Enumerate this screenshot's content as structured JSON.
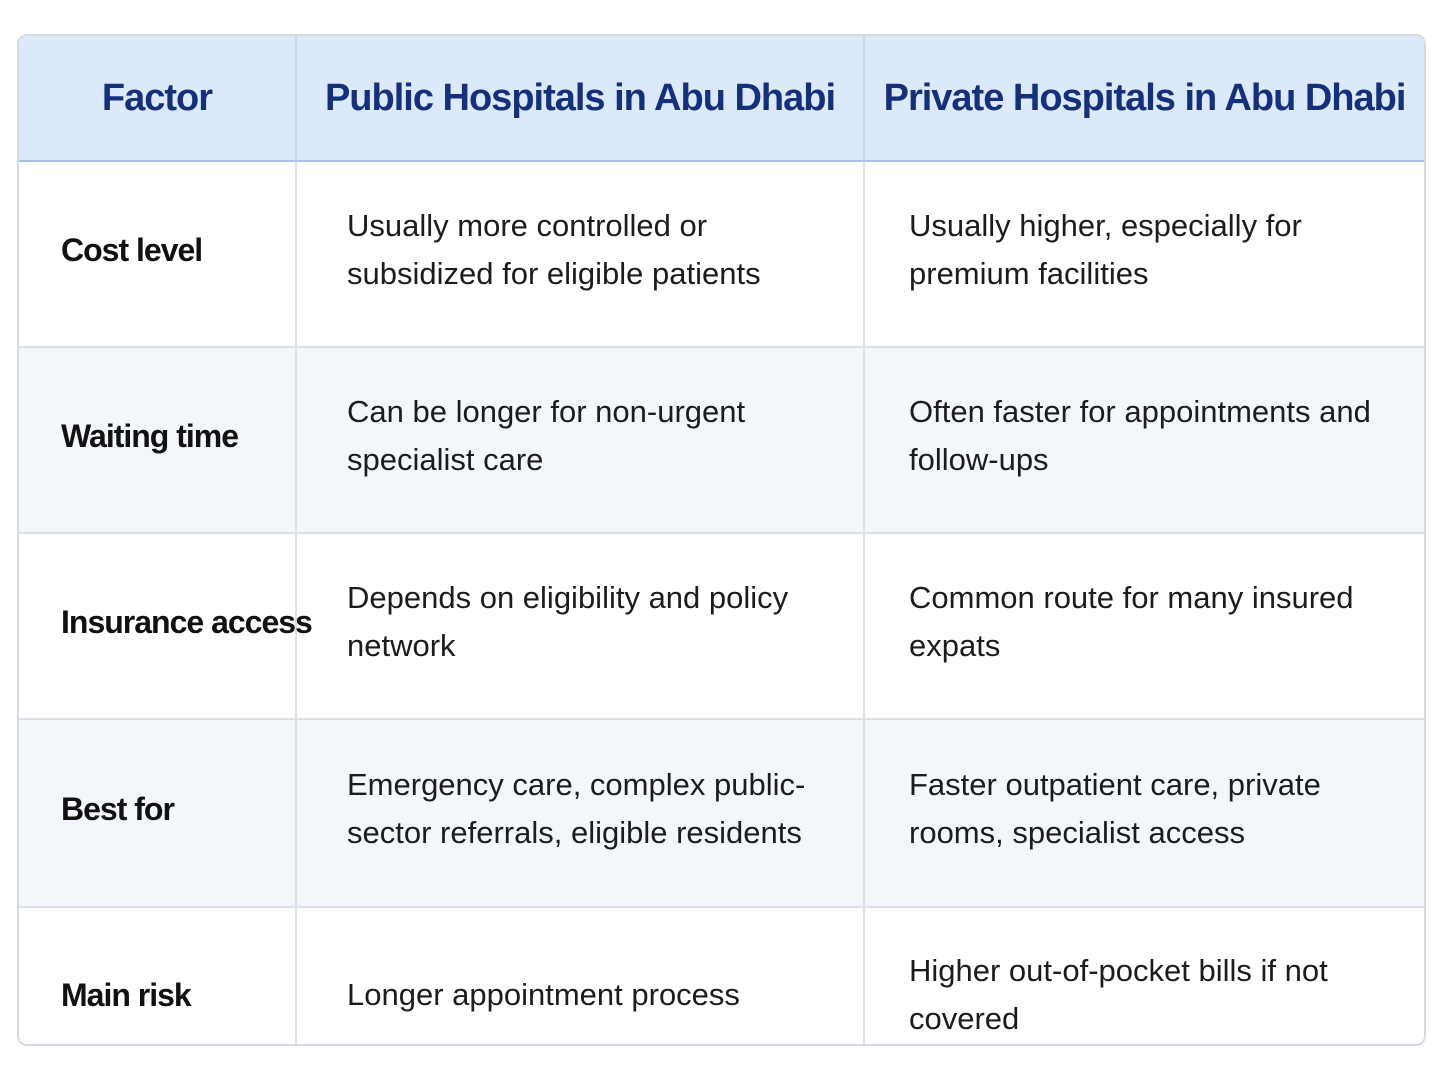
{
  "table": {
    "headers": [
      "Factor",
      "Public Hospitals in Abu Dhabi",
      "Private Hospitals in Abu Dhabi"
    ],
    "rows": [
      {
        "factor": "Cost level",
        "public": "Usually more controlled or subsidized for eligible patients",
        "private": "Usually higher, especially for premium facilities"
      },
      {
        "factor": "Waiting time",
        "public": "Can be longer for non-urgent specialist care",
        "private": "Often faster for appointments and follow-ups"
      },
      {
        "factor": "Insurance access",
        "public": "Depends on eligibility and policy network",
        "private": "Common route for many insured expats"
      },
      {
        "factor": "Best for",
        "public": "Emergency care, complex public-sector referrals, eligible residents",
        "private": "Faster outpatient care, private rooms, specialist access"
      },
      {
        "factor": "Main risk",
        "public": "Longer appointment process",
        "private": "Higher out-of-pocket bills if not covered"
      }
    ]
  },
  "colors": {
    "header_bg": "#dce9fb",
    "header_text": "#14307a",
    "alt_row_bg": "#f3f6fb",
    "border": "#dde0e5"
  }
}
